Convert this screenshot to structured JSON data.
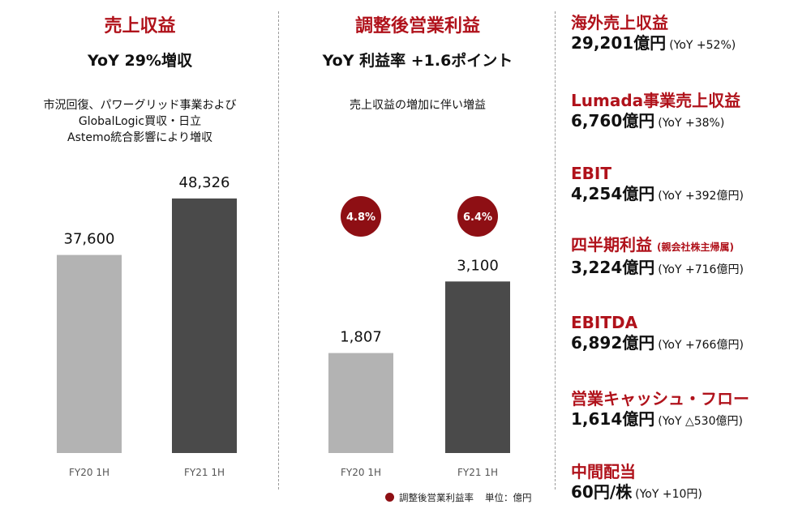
{
  "left_panel": {
    "title": "売上収益",
    "subtitle": "YoY 29%増収",
    "note_lines": [
      "市況回復、パワーグリッド事業および",
      "GlobalLogic買収・日立",
      "Astemo統合影響により増収"
    ]
  },
  "middle_panel": {
    "title": "調整後営業利益",
    "subtitle": "YoY 利益率 +1.6ポイント",
    "note": "売上収益の増加に伴い増益"
  },
  "chart_data": [
    {
      "type": "bar",
      "categories": [
        "FY20 1H",
        "FY21 1H"
      ],
      "values": [
        37600,
        48326
      ],
      "value_labels": [
        "37,600",
        "48,326"
      ],
      "colors": [
        "#b3b3b3",
        "#4a4a4a"
      ],
      "ylim": [
        0,
        52000
      ]
    },
    {
      "type": "bar",
      "categories": [
        "FY20 1H",
        "FY21 1H"
      ],
      "values": [
        1807,
        3100
      ],
      "value_labels": [
        "1,807",
        "3,100"
      ],
      "colors": [
        "#b3b3b3",
        "#4a4a4a"
      ],
      "ylim": [
        0,
        4950
      ],
      "margin_labels": [
        "4.8%",
        "6.4%"
      ],
      "margin_color": "#8e0f14"
    }
  ],
  "legend": {
    "label": "調整後営業利益率",
    "unit": "単位：億円"
  },
  "kpis": [
    {
      "label": "海外売上収益",
      "label_note": "",
      "value": "29,201億円",
      "yoy": "(YoY +52%)"
    },
    {
      "label": "Lumada事業売上収益",
      "label_note": "",
      "value": "6,760億円",
      "yoy": "(YoY +38%)"
    },
    {
      "label": "EBIT",
      "label_note": "",
      "value": "4,254億円",
      "yoy": "(YoY +392億円)"
    },
    {
      "label": "四半期利益",
      "label_note": "(親会社株主帰属)",
      "value": "3,224億円",
      "yoy": "(YoY +716億円)"
    },
    {
      "label": "EBITDA",
      "label_note": "",
      "value": "6,892億円",
      "yoy": "(YoY +766億円)"
    },
    {
      "label": "営業キャッシュ・フロー",
      "label_note": "",
      "value": "1,614億円",
      "yoy": "(YoY △530億円)"
    },
    {
      "label": "中間配当",
      "label_note": "",
      "value": "60円/株",
      "yoy": "(YoY +10円)"
    }
  ]
}
